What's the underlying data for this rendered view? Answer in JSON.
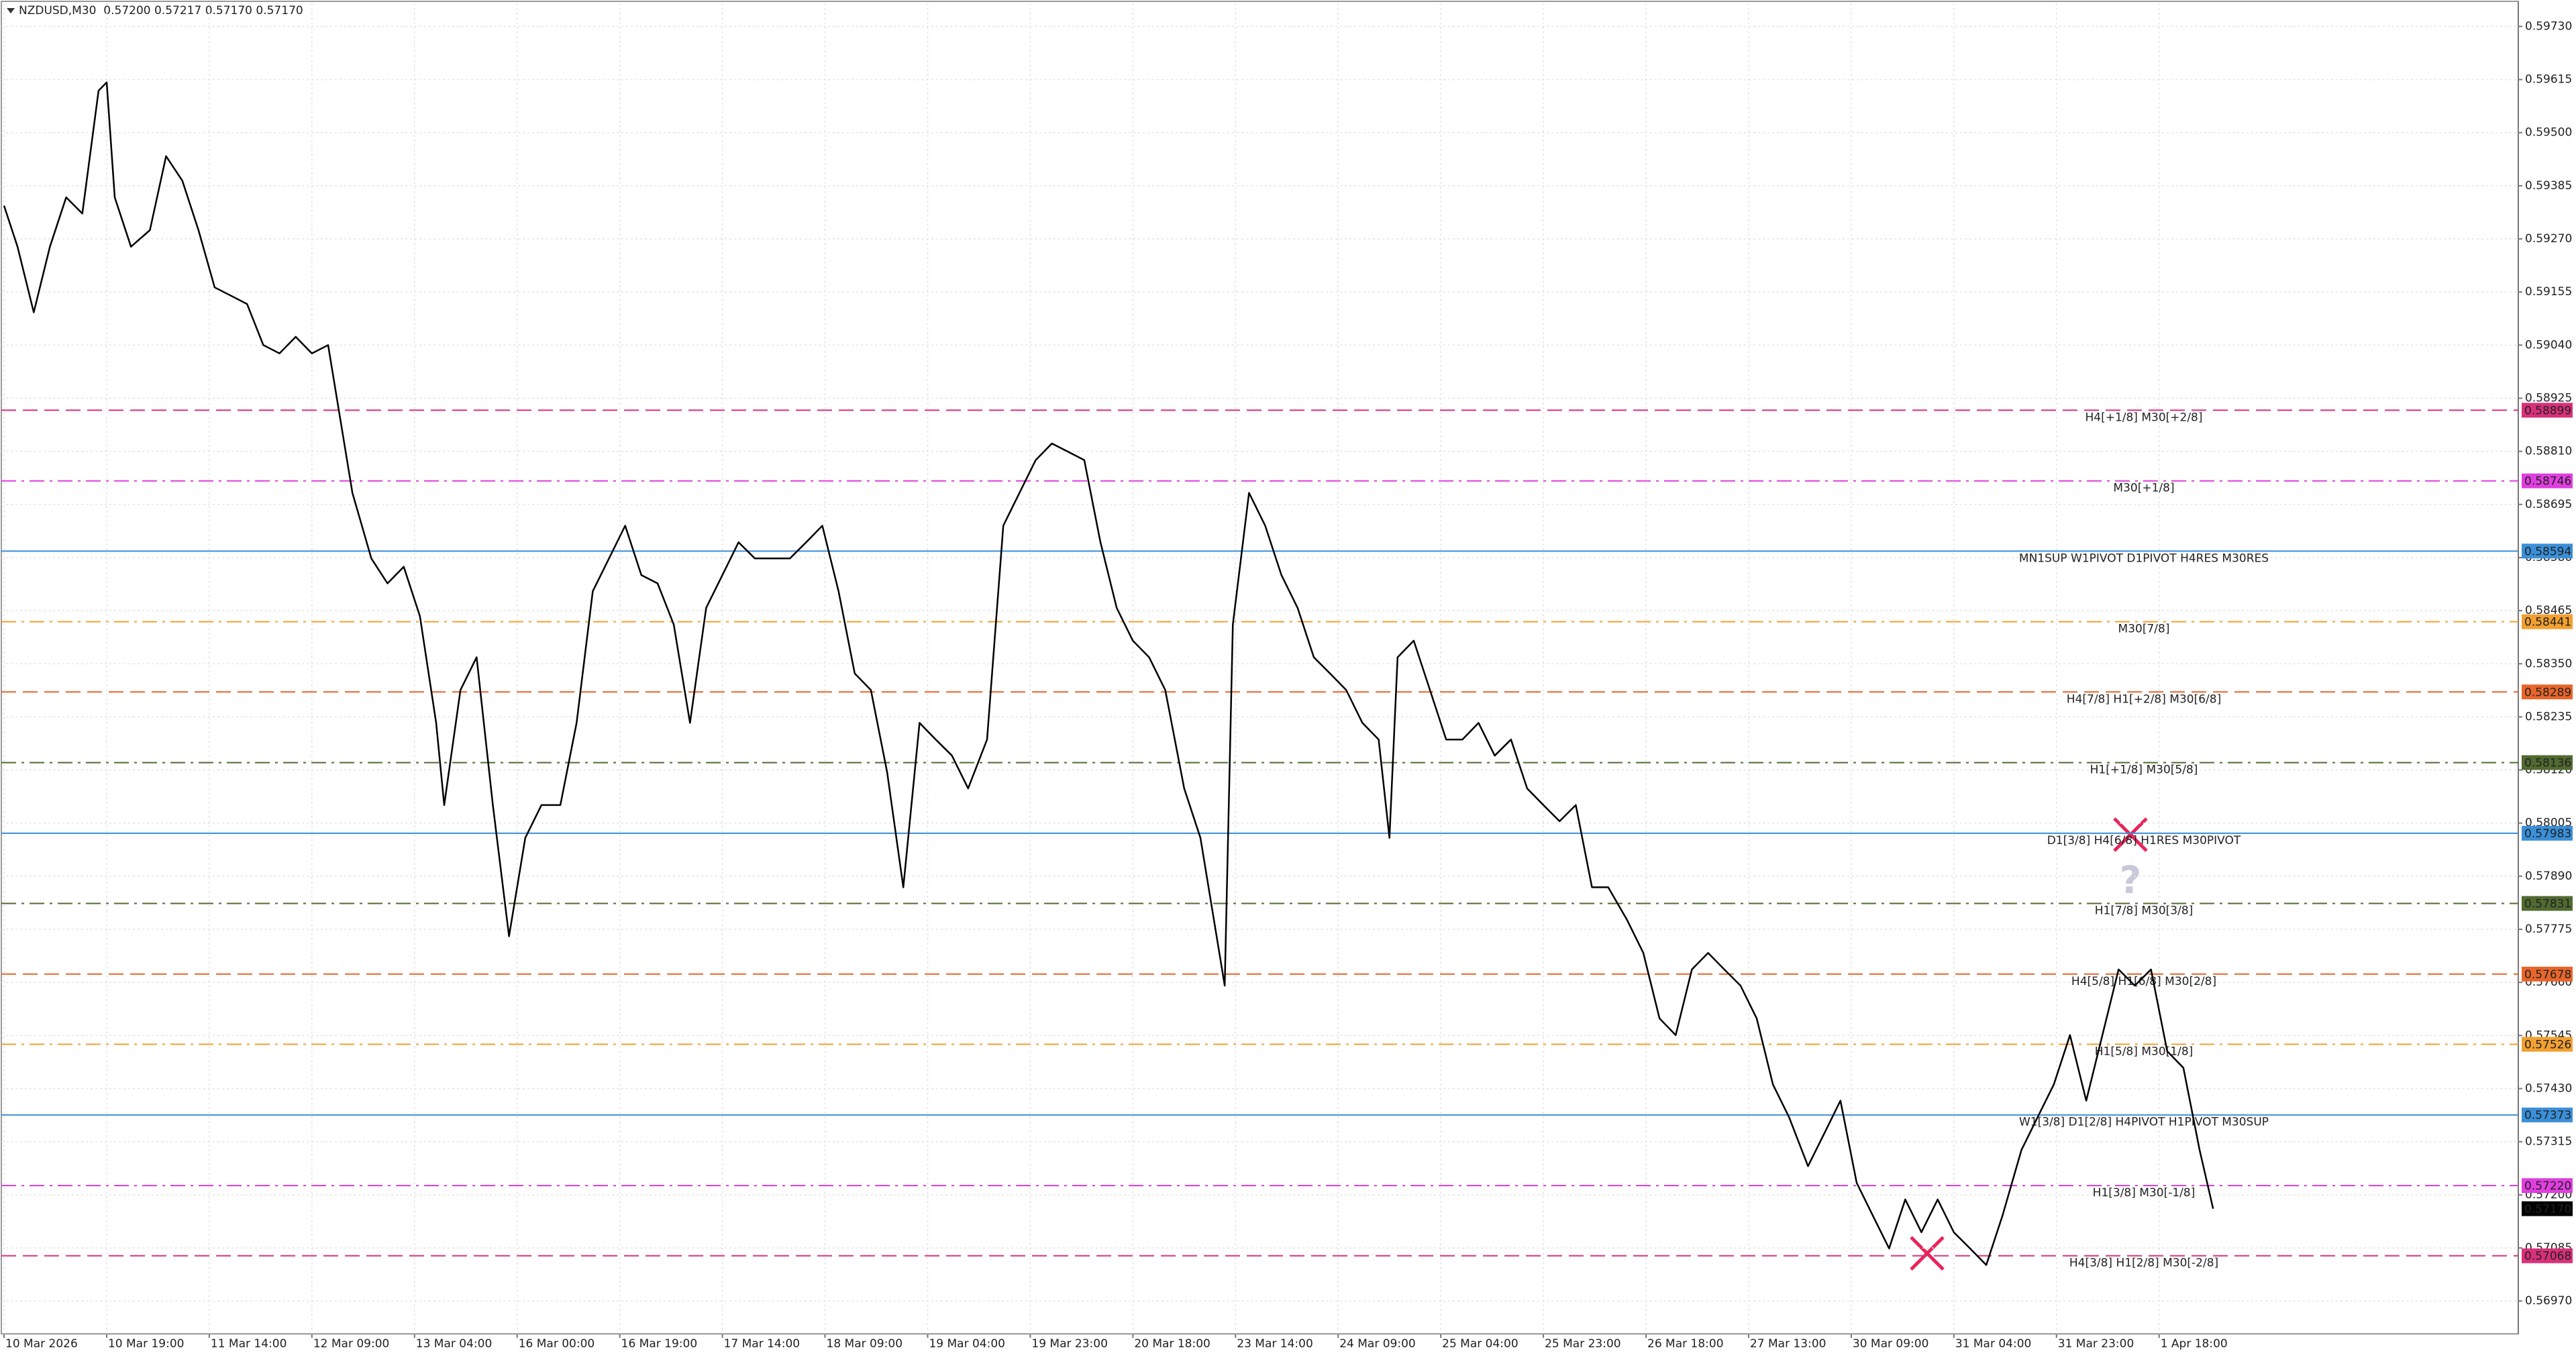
{
  "chart_data": {
    "type": "line",
    "title": "NZDUSD,M30  0.57200 0.57217 0.57170 0.57170",
    "color": "#000000",
    "grid": true,
    "xlim": [
      -1,
      931
    ],
    "ylim": [
      0.56899,
      0.5978
    ],
    "xticks": [
      {
        "value": 0,
        "label": "10 Mar 2026"
      },
      {
        "value": 38,
        "label": "10 Mar 19:00"
      },
      {
        "value": 76,
        "label": "11 Mar 14:00"
      },
      {
        "value": 114,
        "label": "12 Mar 09:00"
      },
      {
        "value": 152,
        "label": "13 Mar 04:00"
      },
      {
        "value": 190,
        "label": "16 Mar 00:00"
      },
      {
        "value": 228,
        "label": "16 Mar 19:00"
      },
      {
        "value": 266,
        "label": "17 Mar 14:00"
      },
      {
        "value": 304,
        "label": "18 Mar 09:00"
      },
      {
        "value": 342,
        "label": "19 Mar 04:00"
      },
      {
        "value": 380,
        "label": "19 Mar 23:00"
      },
      {
        "value": 418,
        "label": "20 Mar 18:00"
      },
      {
        "value": 456,
        "label": "23 Mar 14:00"
      },
      {
        "value": 494,
        "label": "24 Mar 09:00"
      },
      {
        "value": 532,
        "label": "25 Mar 04:00"
      },
      {
        "value": 570,
        "label": "25 Mar 23:00"
      },
      {
        "value": 608,
        "label": "26 Mar 18:00"
      },
      {
        "value": 646,
        "label": "27 Mar 13:00"
      },
      {
        "value": 684,
        "label": "30 Mar 09:00"
      },
      {
        "value": 722,
        "label": "31 Mar 04:00"
      },
      {
        "value": 760,
        "label": "31 Mar 23:00"
      },
      {
        "value": 798,
        "label": "1 Apr 18:00"
      }
    ],
    "yticks": [
      {
        "value": 0.5973,
        "label": "0.59730"
      },
      0.59615,
      {
        "value": 0.595,
        "label": "0.59500"
      },
      0.59385,
      {
        "value": 0.5927,
        "label": "0.59270"
      },
      0.59155,
      {
        "value": 0.5904,
        "label": "0.59040"
      },
      0.58925,
      {
        "value": 0.5881,
        "label": "0.58810"
      },
      0.58695,
      {
        "value": 0.5858,
        "label": "0.58580"
      },
      0.58465,
      {
        "value": 0.5835,
        "label": "0.58350"
      },
      0.58235,
      {
        "value": 0.5812,
        "label": "0.58120"
      },
      0.58005,
      {
        "value": 0.5789,
        "label": "0.57890"
      },
      0.57775,
      {
        "value": 0.5766,
        "label": "0.57660"
      },
      0.57545,
      {
        "value": 0.5743,
        "label": "0.57430"
      },
      0.57315,
      {
        "value": 0.572,
        "label": "0.57200"
      },
      0.57085,
      {
        "value": 0.5697,
        "label": "0.56970"
      }
    ],
    "x": [
      0,
      5,
      11,
      17,
      23,
      29,
      35,
      38,
      41,
      47,
      54,
      60,
      66,
      72,
      78,
      84,
      90,
      96,
      102,
      108,
      114,
      120,
      123,
      129,
      136,
      142,
      148,
      154,
      160,
      163,
      169,
      175,
      181,
      187,
      193,
      199,
      206,
      212,
      218,
      224,
      230,
      236,
      242,
      248,
      254,
      260,
      266,
      272,
      278,
      285,
      291,
      297,
      303,
      309,
      315,
      321,
      327,
      333,
      339,
      345,
      351,
      357,
      364,
      370,
      376,
      382,
      388,
      394,
      400,
      406,
      412,
      418,
      424,
      430,
      437,
      443,
      449,
      452,
      455,
      461,
      467,
      473,
      479,
      485,
      491,
      497,
      503,
      509,
      513,
      516,
      522,
      528,
      534,
      540,
      546,
      552,
      558,
      564,
      570,
      576,
      582,
      588,
      594,
      601,
      607,
      613,
      619,
      625,
      631,
      637,
      643,
      649,
      655,
      661,
      668,
      674,
      680,
      686,
      692,
      698,
      704,
      710,
      716,
      722,
      728,
      734,
      740,
      747,
      753,
      759,
      765,
      771,
      777,
      783,
      789,
      795,
      801,
      807,
      813,
      818
    ],
    "values": [
      0.59342,
      0.59253,
      0.59111,
      0.59253,
      0.5936,
      0.59325,
      0.59591,
      0.59609,
      0.5936,
      0.59253,
      0.59289,
      0.59449,
      0.59396,
      0.59289,
      0.59165,
      0.59147,
      0.59129,
      0.5904,
      0.59022,
      0.59058,
      0.59022,
      0.5904,
      0.58933,
      0.5872,
      0.58578,
      0.58524,
      0.5856,
      0.58453,
      0.58222,
      0.58044,
      0.58293,
      0.58364,
      0.58044,
      0.5776,
      0.57973,
      0.58044,
      0.58044,
      0.58222,
      0.58507,
      0.58578,
      0.58649,
      0.58542,
      0.58524,
      0.58435,
      0.58222,
      0.58471,
      0.58542,
      0.58613,
      0.58578,
      0.58578,
      0.58578,
      0.58613,
      0.58649,
      0.58507,
      0.58329,
      0.58293,
      0.58115,
      0.57866,
      0.58222,
      0.58186,
      0.58151,
      0.5808,
      0.58186,
      0.58649,
      0.5872,
      0.58791,
      0.58827,
      0.58809,
      0.58791,
      0.58613,
      0.58471,
      0.584,
      0.58364,
      0.58293,
      0.5808,
      0.57973,
      0.5776,
      0.57653,
      0.58435,
      0.5872,
      0.58649,
      0.58542,
      0.58471,
      0.58364,
      0.58329,
      0.58293,
      0.58222,
      0.58186,
      0.57973,
      0.58364,
      0.584,
      0.58293,
      0.58186,
      0.58186,
      0.58222,
      0.58151,
      0.58186,
      0.5808,
      0.58044,
      0.58009,
      0.58044,
      0.57866,
      0.57866,
      0.57795,
      0.57724,
      0.57582,
      0.57546,
      0.57688,
      0.57724,
      0.57688,
      0.57653,
      0.57582,
      0.57439,
      0.57368,
      0.57262,
      0.57333,
      0.57404,
      0.57226,
      0.57155,
      0.57084,
      0.5719,
      0.57119,
      0.5719,
      0.57119,
      0.57084,
      0.57048,
      0.57155,
      0.57297,
      0.57368,
      0.57439,
      0.57546,
      0.57404,
      0.57546,
      0.57688,
      0.57653,
      0.57688,
      0.57511,
      0.57475,
      0.57297,
      0.5717
    ],
    "levels": [
      {
        "value": 0.58899,
        "tag": "0.58899",
        "label": "H4[+1/8] M30[+2/8]",
        "color": "#d8307a",
        "style": "dash"
      },
      {
        "value": 0.58746,
        "tag": "0.58746",
        "label": "M30[+1/8]",
        "color": "#e03ee0",
        "style": "dashdot"
      },
      {
        "value": 0.58594,
        "tag": "0.58594",
        "label": "MN1SUP W1PIVOT D1PIVOT H4RES M30RES",
        "color": "#3a8fd8",
        "style": "solid"
      },
      {
        "value": 0.58441,
        "tag": "0.58441",
        "label": "M30[7/8]",
        "color": "#f2a030",
        "style": "dashdot"
      },
      {
        "value": 0.58289,
        "tag": "0.58289",
        "label": "H4[7/8] H1[+2/8] M30[6/8]",
        "color": "#e8652a",
        "style": "dash"
      },
      {
        "value": 0.58136,
        "tag": "0.58136",
        "label": "H1[+1/8] M30[5/8]",
        "color": "#506a30",
        "style": "dashdot"
      },
      {
        "value": 0.57983,
        "tag": "0.57983",
        "label": "D1[3/8] H4[6/8] H1RES M30PIVOT",
        "color": "#3a8fd8",
        "style": "solid"
      },
      {
        "value": 0.57831,
        "tag": "0.57831",
        "label": "H1[7/8] M30[3/8]",
        "color": "#506a30",
        "style": "dashdot"
      },
      {
        "value": 0.57678,
        "tag": "0.57678",
        "label": "H4[5/8] H1[6/8] M30[2/8]",
        "color": "#e8652a",
        "style": "dash"
      },
      {
        "value": 0.57526,
        "tag": "0.57526",
        "label": "H1[5/8] M30[1/8]",
        "color": "#f2a030",
        "style": "dashdot"
      },
      {
        "value": 0.57373,
        "tag": "0.57373",
        "label": "W1[3/8] D1[2/8] H4PIVOT H1PIVOT M30SUP",
        "color": "#3a8fd8",
        "style": "solid"
      },
      {
        "value": 0.5722,
        "tag": "0.57220",
        "label": "H1[3/8] M30[-1/8]",
        "color": "#e03ee0",
        "style": "dashdot"
      },
      {
        "value": 0.57068,
        "tag": "0.57068",
        "label": "H4[3/8] H1[2/8] M30[-2/8]",
        "color": "#d8307a",
        "style": "dash"
      }
    ],
    "last": {
      "value": 0.5717,
      "label": "0.57170"
    },
    "annotation": "?"
  }
}
